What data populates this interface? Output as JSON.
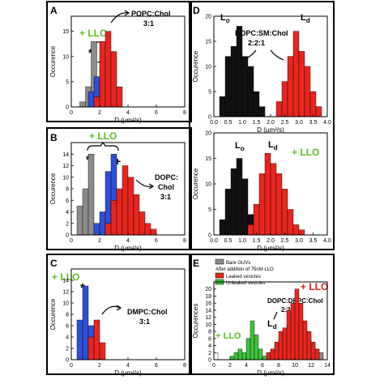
{
  "colors": {
    "gray": "#8c8c8c",
    "blue": "#2f4fd6",
    "red": "#e8261e",
    "black": "#111111",
    "green": "#3cc43c",
    "llo_green": "#5cc020",
    "llo_red": "#d61e1e",
    "white_bar": "#ffffff"
  },
  "chart_data": [
    {
      "id": "A",
      "type": "bar",
      "panel_label": "A",
      "ylabel": "Occurence",
      "xlabel": "D (µm²/s)",
      "xlim": [
        0,
        8
      ],
      "ylim": [
        0,
        18
      ],
      "xticks": [
        "0",
        "2",
        "4",
        "6",
        "8"
      ],
      "yticks": [
        "0",
        "5",
        "10",
        "15"
      ],
      "bin_width": 0.4,
      "series": [
        {
          "color": "gray",
          "x": [
            0.8,
            1.2,
            1.6
          ],
          "values": [
            1,
            4,
            13
          ]
        },
        {
          "color": "blue",
          "x": [
            1.4,
            1.8,
            2.2,
            2.6
          ],
          "values": [
            3,
            6,
            8,
            3
          ]
        },
        {
          "color": "red",
          "x": [
            1.8,
            2.2,
            2.6,
            3.0,
            3.4
          ],
          "values": [
            2,
            13,
            15,
            11,
            4
          ]
        }
      ],
      "annotations": {
        "llo": "+ LLO",
        "lipid": "POPC:Chol",
        "ratio": "3:1",
        "star": "*",
        "plus": "+"
      }
    },
    {
      "id": "B",
      "type": "bar",
      "panel_label": "B",
      "ylabel": "Occurence",
      "xlabel": "D (µm²/s)",
      "xlim": [
        0,
        8
      ],
      "ylim": [
        0,
        16
      ],
      "xticks": [
        "0",
        "2",
        "4",
        "6",
        "8"
      ],
      "yticks": [
        "0",
        "2",
        "4",
        "6",
        "8",
        "10",
        "12",
        "14"
      ],
      "bin_width": 0.4,
      "series": [
        {
          "color": "gray",
          "x": [
            0.6,
            1.0,
            1.4
          ],
          "values": [
            5,
            8,
            14
          ]
        },
        {
          "color": "blue",
          "x": [
            1.8,
            2.2,
            2.6,
            3.0
          ],
          "values": [
            2,
            4,
            11,
            14
          ]
        },
        {
          "color": "red",
          "x": [
            2.6,
            3.0,
            3.4,
            3.8,
            4.2,
            4.6,
            5.0,
            5.4,
            5.8
          ],
          "values": [
            2,
            6,
            8,
            12,
            10,
            7,
            4,
            2,
            1
          ]
        }
      ],
      "annotations": {
        "llo": "+ LLO",
        "lipid": "DOPC:",
        "lipid2": "Chol",
        "ratio": "3:1",
        "star": "*",
        "plus": "+"
      }
    },
    {
      "id": "C",
      "type": "bar",
      "panel_label": "C",
      "ylabel": "Occurence",
      "xlabel": "D (µm²/s)",
      "xlim": [
        0,
        8
      ],
      "ylim": [
        0,
        16
      ],
      "xticks": [
        "0",
        "2",
        "4",
        "6",
        "8"
      ],
      "yticks": [
        "0",
        "2",
        "4",
        "6",
        "8",
        "10",
        "12",
        "14"
      ],
      "bin_width": 0.4,
      "series": [
        {
          "color": "blue",
          "x": [
            0.6,
            1.0,
            1.4,
            1.8
          ],
          "values": [
            7,
            13,
            6,
            2
          ]
        },
        {
          "color": "red",
          "x": [
            1.4,
            1.8,
            2.2
          ],
          "values": [
            4,
            7,
            3
          ]
        }
      ],
      "annotations": {
        "llo": "+ LLO",
        "lipid": "DMPC:Chol",
        "ratio": "3:1",
        "star": "*"
      }
    },
    {
      "id": "D_top",
      "type": "bar",
      "panel_label": "D",
      "ylabel": "Occurence",
      "xlabel": "D (µm²/s)",
      "xlim": [
        0,
        4
      ],
      "ylim": [
        0,
        20
      ],
      "xticks": [
        "0.0",
        "0.5",
        "1.0",
        "1.5",
        "2.0",
        "2.5",
        "3.0",
        "3.5",
        "4.0"
      ],
      "yticks": [
        "0",
        "5",
        "10",
        "15",
        "20"
      ],
      "bin_width": 0.2,
      "series": [
        {
          "color": "black",
          "x": [
            0.3,
            0.5,
            0.7,
            0.9,
            1.1,
            1.3,
            1.5,
            1.7
          ],
          "values": [
            4,
            12,
            14,
            18,
            12,
            10,
            5,
            2
          ]
        },
        {
          "color": "red",
          "x": [
            2.3,
            2.5,
            2.7,
            2.9,
            3.1,
            3.3,
            3.5,
            3.7
          ],
          "values": [
            3,
            7,
            12,
            17,
            13,
            10,
            5,
            2
          ]
        }
      ],
      "annotations": {
        "lo": "L",
        "lo_sub": "o",
        "ld": "L",
        "ld_sub": "d",
        "lipid": "DOPC:SM:Chol",
        "ratio": "2:2:1"
      }
    },
    {
      "id": "D_bottom",
      "type": "bar",
      "ylabel": "Occurence",
      "xlabel": "D (µm²/s)",
      "xlim": [
        0,
        4
      ],
      "ylim": [
        0,
        20
      ],
      "xticks": [
        "0.0",
        "0.5",
        "1.0",
        "1.5",
        "2.0",
        "2.5",
        "3.0",
        "3.5",
        "4.0"
      ],
      "yticks": [
        "0",
        "5",
        "10",
        "15",
        "20"
      ],
      "bin_width": 0.2,
      "series": [
        {
          "color": "black",
          "x": [
            0.3,
            0.5,
            0.7,
            0.9,
            1.1,
            1.3
          ],
          "values": [
            3,
            9,
            13,
            15,
            11,
            4
          ]
        },
        {
          "color": "red",
          "x": [
            1.3,
            1.5,
            1.7,
            1.9,
            2.1,
            2.3,
            2.5,
            2.7,
            2.9,
            3.1
          ],
          "values": [
            2,
            6,
            12,
            16,
            14,
            12,
            9,
            5,
            2,
            1
          ]
        }
      ],
      "annotations": {
        "lo": "L",
        "lo_sub": "o",
        "ld": "L",
        "ld_sub": "d",
        "llo": "+ LLO"
      }
    },
    {
      "id": "E",
      "type": "bar",
      "panel_label": "E",
      "ylabel": "Occurences",
      "xlabel": "D (µm²/s)",
      "xlim": [
        0,
        14
      ],
      "ylim": [
        0,
        22
      ],
      "xticks": [
        "0",
        "2",
        "4",
        "6",
        "8",
        "10",
        "12",
        "14"
      ],
      "yticks": [
        "0",
        "2",
        "4",
        "6",
        "8",
        "10",
        "12",
        "14",
        "16",
        "18",
        "20"
      ],
      "bin_width": 0.5,
      "series": [
        {
          "name": "Bare GUVs",
          "color": "gray",
          "x": [
            6.75,
            7.25,
            7.75,
            8.25,
            8.75,
            9.25,
            9.75,
            10.25,
            10.75,
            11.25,
            11.75,
            12.25,
            12.75,
            13.25
          ],
          "values": [
            2,
            3,
            4,
            6,
            8,
            10,
            11,
            12,
            11,
            9,
            7,
            5,
            3,
            2
          ]
        },
        {
          "name": "Leaked vesicles",
          "color": "red",
          "x": [
            6.25,
            6.75,
            7.25,
            7.75,
            8.25,
            8.75,
            9.25,
            9.75,
            10.25,
            10.75,
            11.25,
            11.75,
            12.25,
            12.75
          ],
          "values": [
            1,
            2,
            3,
            5,
            8,
            9,
            14,
            16,
            20,
            16,
            11,
            8,
            5,
            3
          ]
        },
        {
          "name": "Unleaked vesicles",
          "color": "green",
          "x": [
            2.25,
            2.75,
            3.25,
            3.75,
            4.25,
            4.75,
            5.25,
            5.75,
            6.25
          ],
          "values": [
            1,
            2,
            3,
            2,
            6,
            11,
            7,
            3,
            1
          ]
        },
        {
          "color": "white_bar",
          "x": [
            0.25
          ],
          "values": [
            2
          ]
        }
      ],
      "legend": {
        "position": "top-left",
        "extra_text": "After addition of 75nM LLO"
      },
      "annotations": {
        "llo_left": "+ LLO",
        "llo_right": "+ LLO",
        "lipid": "DOPC:DPPC:Chol",
        "ratio": "2:2:1",
        "ld": "L",
        "ld_sub": "d"
      }
    }
  ]
}
